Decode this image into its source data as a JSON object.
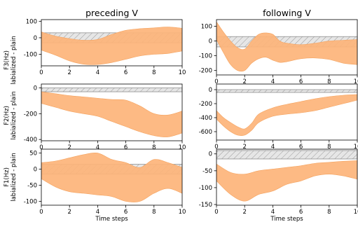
{
  "colors": {
    "band": "#fdb47a",
    "band_edge": "#f4a25e",
    "hatch_fill": "#e6e6e6",
    "hatch_line": "#9a9a9a",
    "axis": "#000000"
  },
  "column_titles": [
    "preceding V",
    "following V"
  ],
  "row_ylabels": [
    {
      "line1": "F3(Hz)",
      "line2": "labialized - plain"
    },
    {
      "line1": "F2(Hz)",
      "line2": "labialized - plain"
    },
    {
      "line1": "F1(Hz)",
      "line2": "labialized - plain"
    }
  ],
  "chart_data": [
    {
      "type": "area",
      "title": "preceding V",
      "row": "F3(Hz)",
      "xlabel": "",
      "xlim": [
        0,
        10
      ],
      "ylim": [
        -170,
        110
      ],
      "xticks": [
        0,
        2,
        4,
        6,
        8,
        10
      ],
      "yticks": [
        -100,
        0,
        100
      ],
      "grid": false,
      "reference_band": [
        -30,
        30
      ],
      "x": [
        0,
        1,
        2,
        3,
        4,
        5,
        6,
        7,
        8,
        9,
        10
      ],
      "upper": [
        35,
        10,
        -5,
        -15,
        -10,
        20,
        45,
        55,
        60,
        65,
        58
      ],
      "lower": [
        -75,
        -105,
        -140,
        -160,
        -162,
        -150,
        -130,
        -110,
        -100,
        -95,
        -80
      ]
    },
    {
      "type": "area",
      "title": "following V",
      "row": "F3(Hz)",
      "xlabel": "",
      "xlim": [
        0,
        10
      ],
      "ylim": [
        -230,
        145
      ],
      "xticks": [
        0,
        2,
        4,
        6,
        8,
        10
      ],
      "yticks": [
        -200,
        -100,
        0,
        100
      ],
      "grid": false,
      "reference_band": [
        -40,
        30
      ],
      "x": [
        0,
        0.5,
        1,
        1.5,
        2,
        2.5,
        3,
        3.5,
        4,
        4.5,
        5,
        6,
        7,
        8,
        9,
        10
      ],
      "upper": [
        130,
        60,
        0,
        -45,
        -55,
        0,
        45,
        55,
        45,
        0,
        -15,
        -25,
        -15,
        0,
        5,
        10
      ],
      "lower": [
        10,
        -80,
        -160,
        -200,
        -200,
        -150,
        -120,
        -110,
        -130,
        -145,
        -140,
        -120,
        -115,
        -125,
        -150,
        -160
      ]
    },
    {
      "type": "area",
      "title": "",
      "row": "F2(Hz)",
      "xlabel": "",
      "xlim": [
        0,
        10
      ],
      "ylim": [
        -410,
        30
      ],
      "xticks": [
        0,
        2,
        4,
        6,
        8,
        10
      ],
      "yticks": [
        -400,
        -200,
        0
      ],
      "grid": false,
      "reference_band": [
        -30,
        0
      ],
      "x": [
        0,
        1,
        2,
        3,
        4,
        5,
        6,
        7,
        8,
        9,
        10
      ],
      "upper": [
        -30,
        -45,
        -60,
        -70,
        -80,
        -90,
        -95,
        -140,
        -200,
        -210,
        -180
      ],
      "lower": [
        -120,
        -150,
        -180,
        -200,
        -220,
        -260,
        -300,
        -340,
        -370,
        -380,
        -350
      ]
    },
    {
      "type": "area",
      "title": "",
      "row": "F2(Hz)",
      "xlabel": "",
      "xlim": [
        0,
        10
      ],
      "ylim": [
        -720,
        80
      ],
      "xticks": [
        0,
        2,
        4,
        6,
        8,
        10
      ],
      "yticks": [
        -600,
        -400,
        -200,
        0
      ],
      "grid": false,
      "reference_band": [
        -40,
        0
      ],
      "x": [
        0,
        0.5,
        1,
        1.5,
        2,
        2.5,
        3,
        4,
        5,
        6,
        7,
        8,
        9,
        10
      ],
      "upper": [
        -300,
        -400,
        -470,
        -530,
        -560,
        -480,
        -350,
        -260,
        -210,
        -170,
        -130,
        -100,
        -80,
        -70
      ],
      "lower": [
        -420,
        -520,
        -600,
        -650,
        -650,
        -580,
        -470,
        -380,
        -350,
        -330,
        -300,
        -250,
        -200,
        -150
      ]
    },
    {
      "type": "area",
      "title": "",
      "row": "F1(Hz)",
      "xlabel": "Time steps",
      "xlim": [
        0,
        10
      ],
      "ylim": [
        -112,
        62
      ],
      "xticks": [
        0,
        2,
        4,
        6,
        8,
        10
      ],
      "yticks": [
        -100,
        -50,
        0,
        50
      ],
      "grid": false,
      "reference_band": [
        -15,
        15
      ],
      "x": [
        0,
        1,
        2,
        3,
        4,
        5,
        6,
        7,
        8,
        9,
        10
      ],
      "upper": [
        20,
        25,
        35,
        45,
        50,
        30,
        20,
        5,
        30,
        20,
        5
      ],
      "lower": [
        -30,
        -55,
        -70,
        -75,
        -80,
        -85,
        -100,
        -100,
        -75,
        -60,
        -75
      ]
    },
    {
      "type": "area",
      "title": "",
      "row": "F1(Hz)",
      "xlabel": "Time steps",
      "xlim": [
        0,
        10
      ],
      "ylim": [
        -152,
        14
      ],
      "xticks": [
        0,
        2,
        4,
        6,
        8,
        10
      ],
      "yticks": [
        -150,
        -100,
        -50,
        0
      ],
      "grid": false,
      "reference_band": [
        -15,
        10
      ],
      "x": [
        0,
        1,
        2,
        3,
        4,
        5,
        6,
        7,
        8,
        9,
        10
      ],
      "upper": [
        -30,
        -55,
        -60,
        -50,
        -45,
        -40,
        -35,
        -28,
        -25,
        -22,
        -20
      ],
      "lower": [
        -80,
        -120,
        -140,
        -120,
        -110,
        -90,
        -80,
        -65,
        -60,
        -65,
        -75
      ]
    }
  ]
}
